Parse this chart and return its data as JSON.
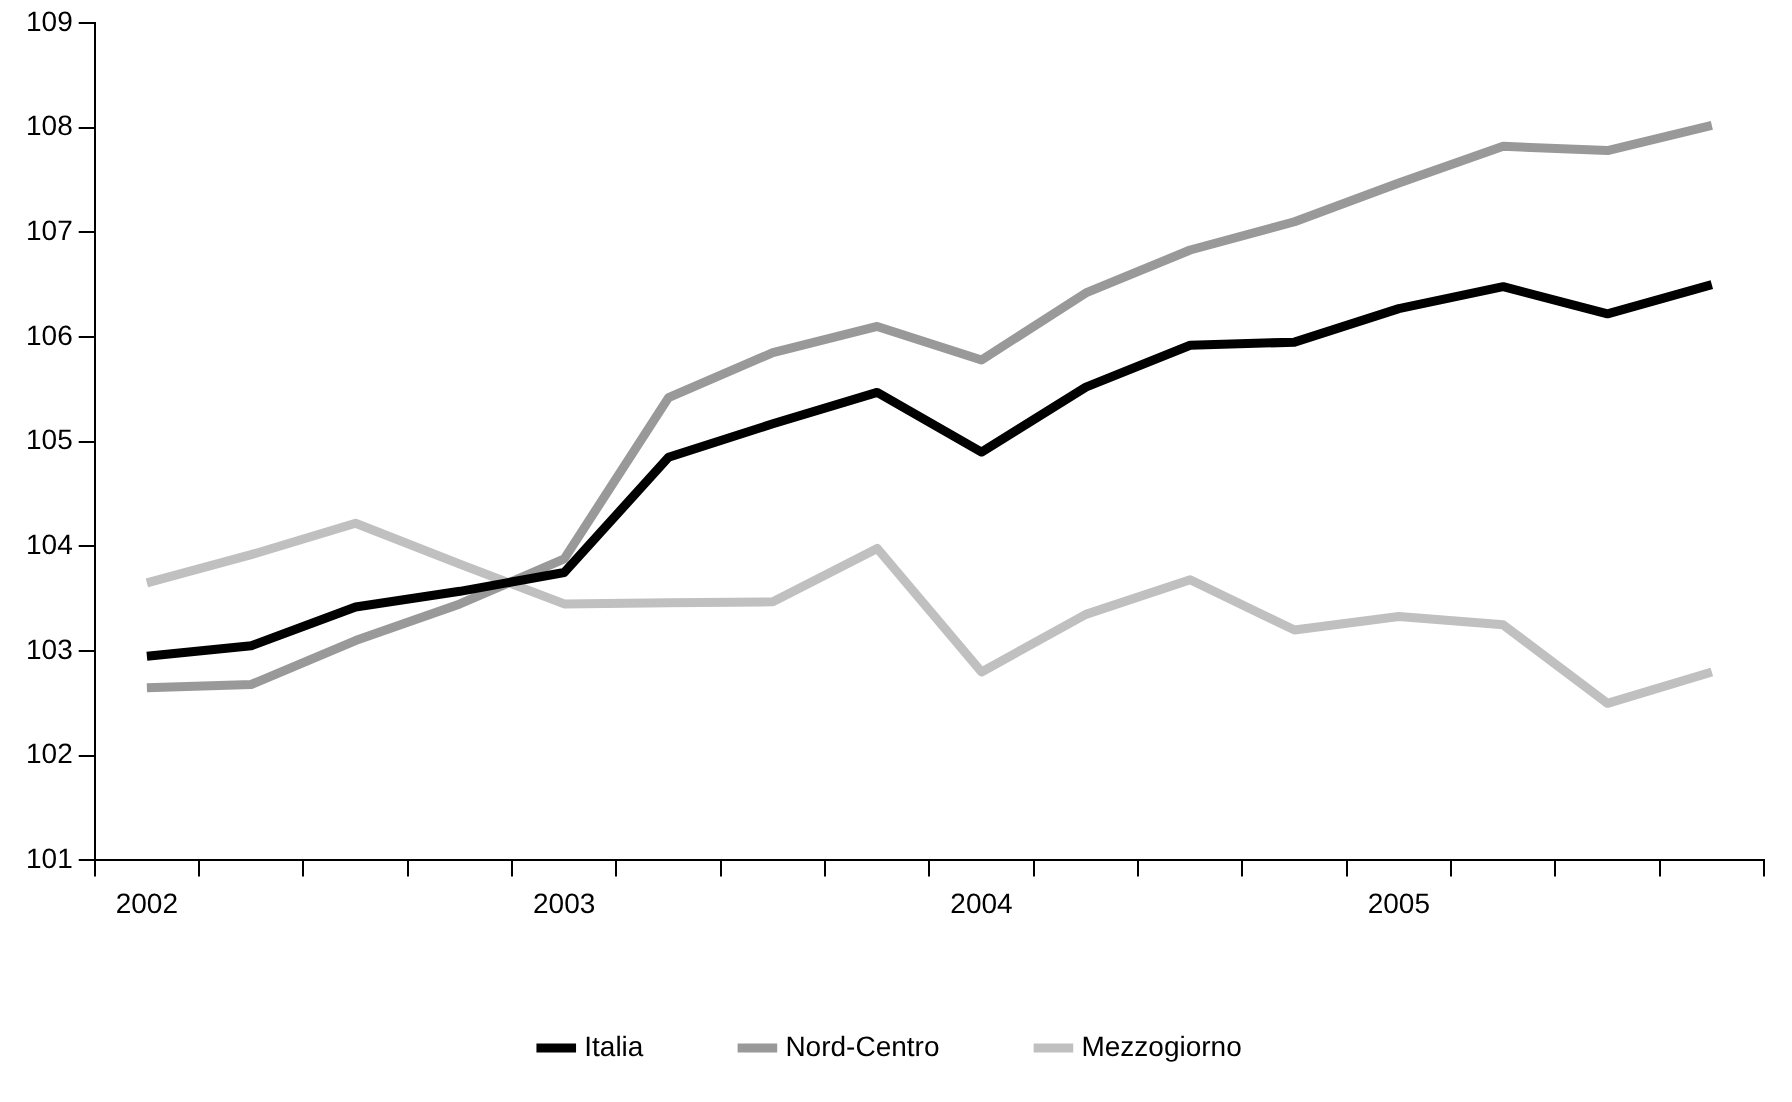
{
  "chart_data": {
    "type": "line",
    "categories": [
      "2002",
      null,
      null,
      null,
      "2003",
      null,
      null,
      null,
      "2004",
      null,
      null,
      null,
      "2005",
      null,
      null,
      null
    ],
    "series": [
      {
        "name": "Italia",
        "color": "#000000",
        "values": [
          102.95,
          103.05,
          103.42,
          103.57,
          103.75,
          104.85,
          105.17,
          105.47,
          104.9,
          105.52,
          105.92,
          105.95,
          106.27,
          106.48,
          106.22,
          106.5
        ]
      },
      {
        "name": "Nord-Centro",
        "color": "#999999",
        "values": [
          102.65,
          102.68,
          103.1,
          103.45,
          103.88,
          105.42,
          105.85,
          106.1,
          105.78,
          106.42,
          106.83,
          107.1,
          107.47,
          107.82,
          107.78,
          108.02
        ]
      },
      {
        "name": "Mezzogiorno",
        "color": "#c0c0c0",
        "values": [
          103.65,
          103.92,
          104.22,
          103.83,
          103.45,
          103.46,
          103.47,
          103.98,
          102.8,
          103.35,
          103.68,
          103.2,
          103.33,
          103.25,
          102.5,
          102.8
        ]
      }
    ],
    "ylim": [
      101,
      109
    ],
    "yticks": [
      101,
      102,
      103,
      104,
      105,
      106,
      107,
      108,
      109
    ],
    "grid": false,
    "legend": "bottom",
    "marker": "none",
    "line_style": "solid"
  }
}
